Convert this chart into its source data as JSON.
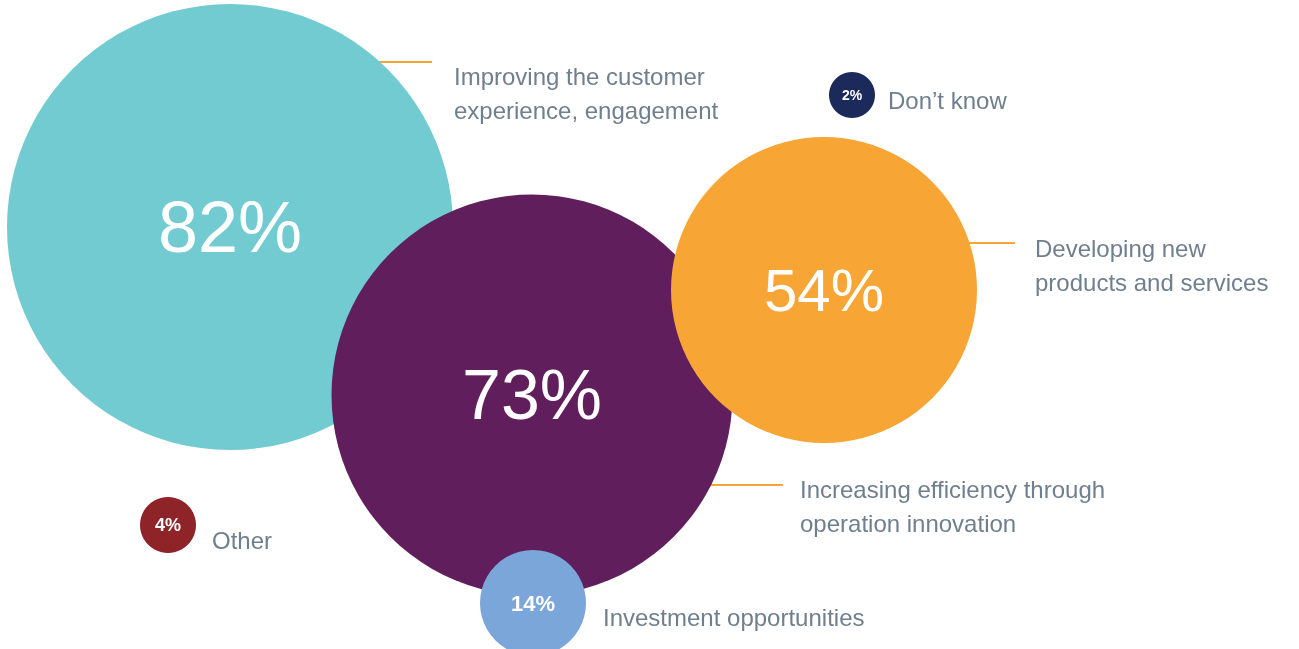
{
  "chart_data": {
    "type": "other",
    "categories": [
      "Improving the customer experience, engagement",
      "Increasing efficiency through operation innovation",
      "Developing new products and services",
      "Investment opportunities",
      "Other",
      "Don’t know"
    ],
    "values": [
      82,
      73,
      54,
      14,
      4,
      2
    ],
    "value_labels": [
      "82%",
      "73%",
      "54%",
      "14%",
      "4%",
      "2%"
    ],
    "colors": [
      "#72cbd1",
      "#611e5c",
      "#f7a535",
      "#7ba6d9",
      "#8e2427",
      "#1b2a5a"
    ]
  }
}
